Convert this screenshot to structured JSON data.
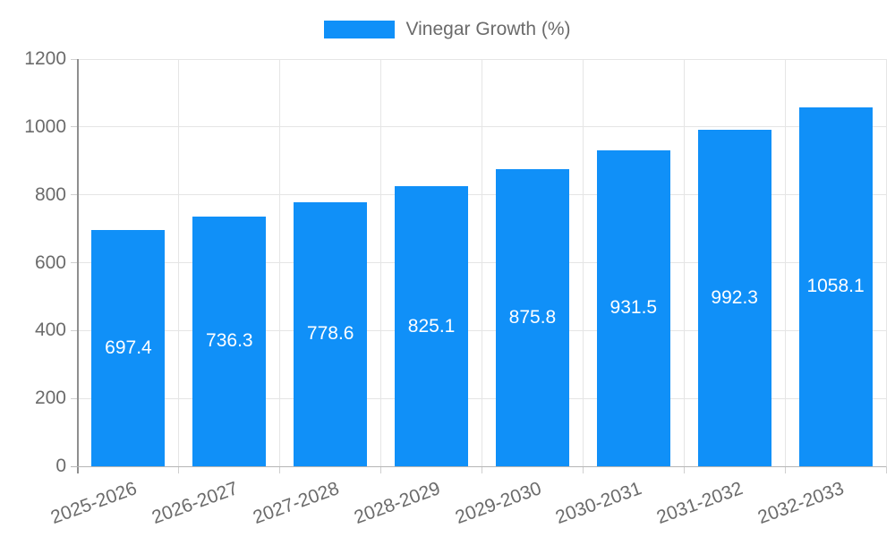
{
  "legend": {
    "label": "Vinegar Growth (%)"
  },
  "chart_data": {
    "type": "bar",
    "title": "",
    "xlabel": "",
    "ylabel": "",
    "categories": [
      "2025-2026",
      "2026-2027",
      "2027-2028",
      "2028-2029",
      "2029-2030",
      "2030-2031",
      "2031-2032",
      "2032-2033"
    ],
    "series": [
      {
        "name": "Vinegar Growth (%)",
        "values": [
          697.4,
          736.3,
          778.6,
          825.1,
          875.8,
          931.5,
          992.3,
          1058.1
        ]
      }
    ],
    "value_labels": [
      "697.4",
      "736.3",
      "778.6",
      "825.1",
      "875.8",
      "931.5",
      "992.3",
      "1058.1"
    ],
    "ylim": [
      0,
      1200
    ],
    "yticks": [
      0,
      200,
      400,
      600,
      800,
      1000,
      1200
    ],
    "grid": true,
    "legend_position": "top",
    "colors": {
      "bar": "#1090f8",
      "grid": "#e5e5e5",
      "tick": "#cfcfcf",
      "axis_text": "#6b6b6b",
      "bar_label": "#ffffff",
      "y_axis_line": "#8f8f8f",
      "x_axis_line": "#b5b5b5"
    }
  }
}
